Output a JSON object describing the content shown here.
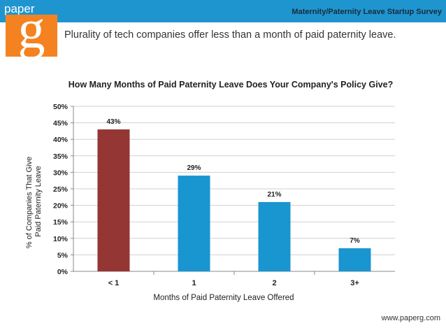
{
  "header": {
    "brand": "paper",
    "logo_letter": "g",
    "survey_title": "Maternity/Paternity Leave Startup Survey",
    "headline": "Plurality of tech companies offer less than a month of paid paternity leave."
  },
  "footer": {
    "url": "www.paperg.com"
  },
  "colors": {
    "highlight": "#943634",
    "bar": "#1995d0",
    "brand_blue": "#1f95cf",
    "brand_orange": "#f58220"
  },
  "chart_data": {
    "type": "bar",
    "title": "How Many Months of Paid Paternity Leave Does Your Company's Policy Give?",
    "xlabel": "Months of Paid Paternity Leave Offered",
    "ylabel": [
      "% of Companies That Give",
      "Paid  Paternity Leave"
    ],
    "categories": [
      "< 1",
      "1",
      "2",
      "3+"
    ],
    "values": [
      43,
      29,
      21,
      7
    ],
    "data_labels": [
      "43%",
      "29%",
      "21%",
      "7%"
    ],
    "ylim": [
      0,
      50
    ],
    "yticks": [
      "0%",
      "5%",
      "10%",
      "15%",
      "20%",
      "25%",
      "30%",
      "35%",
      "40%",
      "45%",
      "50%"
    ],
    "grid": true,
    "legend": "none"
  }
}
